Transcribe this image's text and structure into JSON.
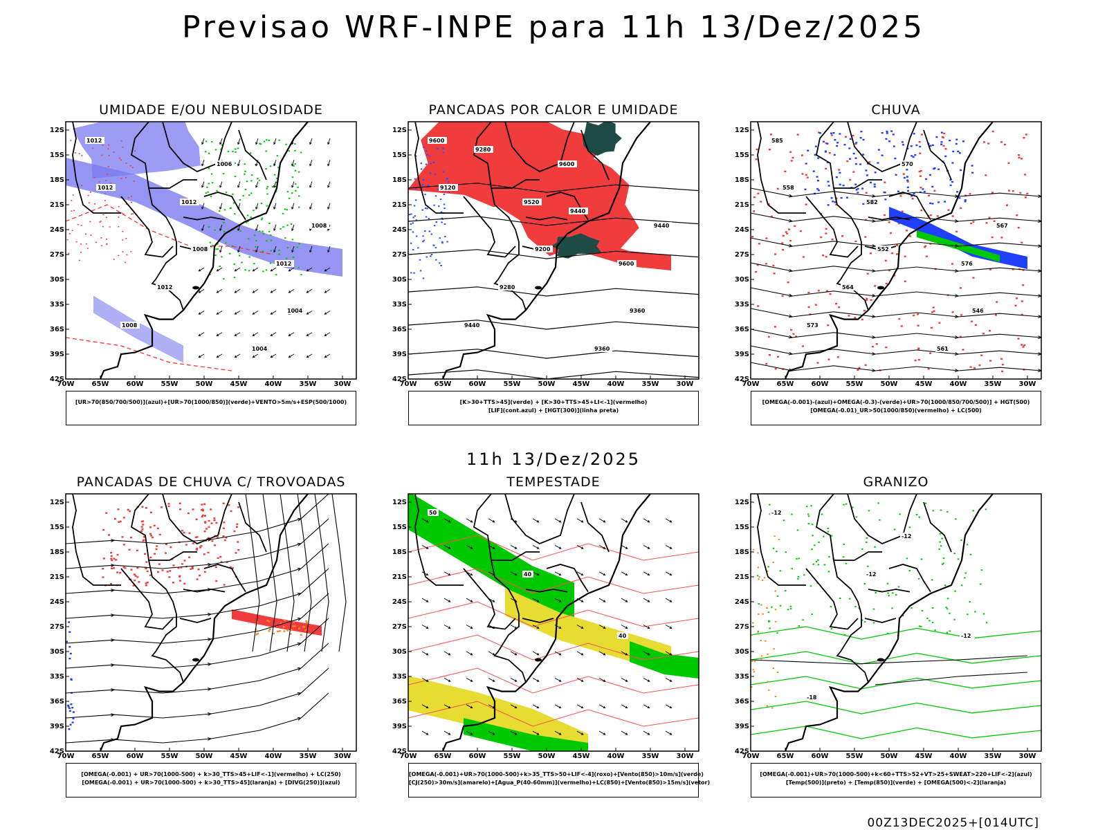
{
  "header": {
    "title": "Previsao WRF-INPE  para 11h 13/Dez/2025"
  },
  "middle": {
    "title": "11h 13/Dez/2025"
  },
  "footer": {
    "stamp": "00Z13DEC2025+[014UTC]"
  },
  "axes": {
    "lat_labels": [
      "12S",
      "15S",
      "18S",
      "21S",
      "24S",
      "27S",
      "30S",
      "33S",
      "36S",
      "39S",
      "42S"
    ],
    "lon_labels": [
      "70W",
      "65W",
      "60W",
      "55W",
      "50W",
      "45W",
      "40W",
      "35W",
      "30W"
    ]
  },
  "panels": [
    {
      "title": "UMIDADE E/OU NEBULOSIDADE",
      "legend": [
        "[UR>70(850/700/500)](azul)+[UR>70(1000/850)](verde)+VENTO>5m/s+ESP(500/1000)"
      ],
      "contour_labels": [
        "1012",
        "1012",
        "1012",
        "1008",
        "1006",
        "1008",
        "1012",
        "1004",
        "1012",
        "1008",
        "1004"
      ]
    },
    {
      "title": "PANCADAS POR CALOR E UMIDADE",
      "legend": [
        "[K>30+TTS>45](verde) + [K>30+TTS>45+LI<-1](vermelho)",
        "[LIF](cont.azul) + [HGT(300)](linha preta)"
      ],
      "contour_labels": [
        "9600",
        "9520",
        "9600",
        "9440",
        "9600",
        "9440",
        "9280",
        "9360",
        "9120",
        "9200",
        "9360",
        "9280",
        "9440"
      ]
    },
    {
      "title": "CHUVA",
      "legend": [
        "[OMEGA(-0.001)-(azul)+OMEGA(-0.3)-(verde)+UR>70(1000/850/700/500)] + HGT(500)",
        "[OMEGA(-0.01)_UR>50(1000/850)(vermelho) + LC(500)"
      ],
      "contour_labels": [
        "585",
        "582",
        "576",
        "573",
        "570",
        "567",
        "564",
        "561",
        "558",
        "552",
        "546"
      ]
    },
    {
      "title": "PANCADAS DE CHUVA C/ TROVOADAS",
      "legend": [
        "[OMEGA(-0.001) + UR>70(1000-500) + k>30_TTS>45+LIF<-1](vermelho) + LC(250)",
        "[OMEGA(-0.001) + UR>70(1000-500) + k>30_TTS>45](laranja) + [DIVG(250)](azul)"
      ],
      "contour_labels": []
    },
    {
      "title": "TEMPESTADE",
      "legend": [
        "[OMEGA(-0.001)+UR>70(1000-500)+k>35_TTS>50+LIF<-4](roxo)+[Vento(850)>10m/s](verde)",
        "[CJ(250)>30m/s](amarelo)+[Agua_P(40-60mm)](vermelho)+LC(850)+[Vento(850)>15m/s](vetor)"
      ],
      "contour_labels": [
        "50",
        "40",
        "40"
      ]
    },
    {
      "title": "GRANIZO",
      "legend": [
        "[OMEGA(-0.001)+UR>70(1000-500)+k<60+TTS>52+VT>25+SWEAT>220+LIF<-2](azul)",
        "[Temp(500)](preto) + [Temp(850)](verde) + [OMEGA(500)<-2](laranja)"
      ],
      "contour_labels": [
        "-12",
        "-12",
        "-12",
        "-18",
        "-12"
      ]
    }
  ],
  "colors": {
    "blue": "#7b7bf0",
    "green": "#00c800",
    "red": "#f03c3c",
    "yellow": "#e6dc32",
    "darkgreen": "#1e4b46",
    "orange": "#f08c28"
  }
}
